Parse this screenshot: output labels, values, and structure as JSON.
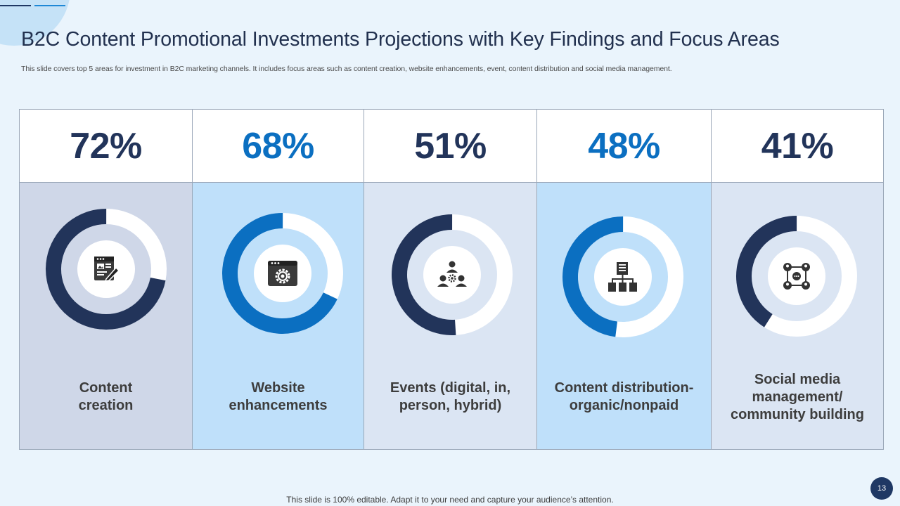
{
  "slide": {
    "title": "B2C Content Promotional Investments Projections with Key Findings and Focus Areas",
    "subtitle": "This slide covers top 5 areas for investment in B2C marketing channels. It includes focus areas such as content creation, website enhancements, event, content distribution and social media management.",
    "footer": "This slide is 100% editable. Adapt it to your need and capture your audience’s attention.",
    "page_number": "13"
  },
  "areas": [
    {
      "percent_label": "72%",
      "percent": 72,
      "label_lines": [
        "Content",
        "creation"
      ],
      "icon": "content-creation-icon",
      "accent": "#22345a",
      "body_bg": "#cfd7e8"
    },
    {
      "percent_label": "68%",
      "percent": 68,
      "label_lines": [
        "Website",
        "enhancements"
      ],
      "icon": "website-settings-icon",
      "accent": "#0b6fc1",
      "body_bg": "#bfe0fa"
    },
    {
      "percent_label": "51%",
      "percent": 51,
      "label_lines": [
        "Events (digital, in,",
        "person, hybrid)"
      ],
      "icon": "team-settings-icon",
      "accent": "#22345a",
      "body_bg": "#dbe5f3"
    },
    {
      "percent_label": "48%",
      "percent": 48,
      "label_lines": [
        "Content distribution-",
        "organic/nonpaid"
      ],
      "icon": "document-distribution-icon",
      "accent": "#0b6fc1",
      "body_bg": "#bfe0fa"
    },
    {
      "percent_label": "41%",
      "percent": 41,
      "label_lines": [
        "Social media",
        "management/",
        "community building"
      ],
      "icon": "community-network-icon",
      "accent": "#22345a",
      "body_bg": "#dbe5f3"
    }
  ]
}
